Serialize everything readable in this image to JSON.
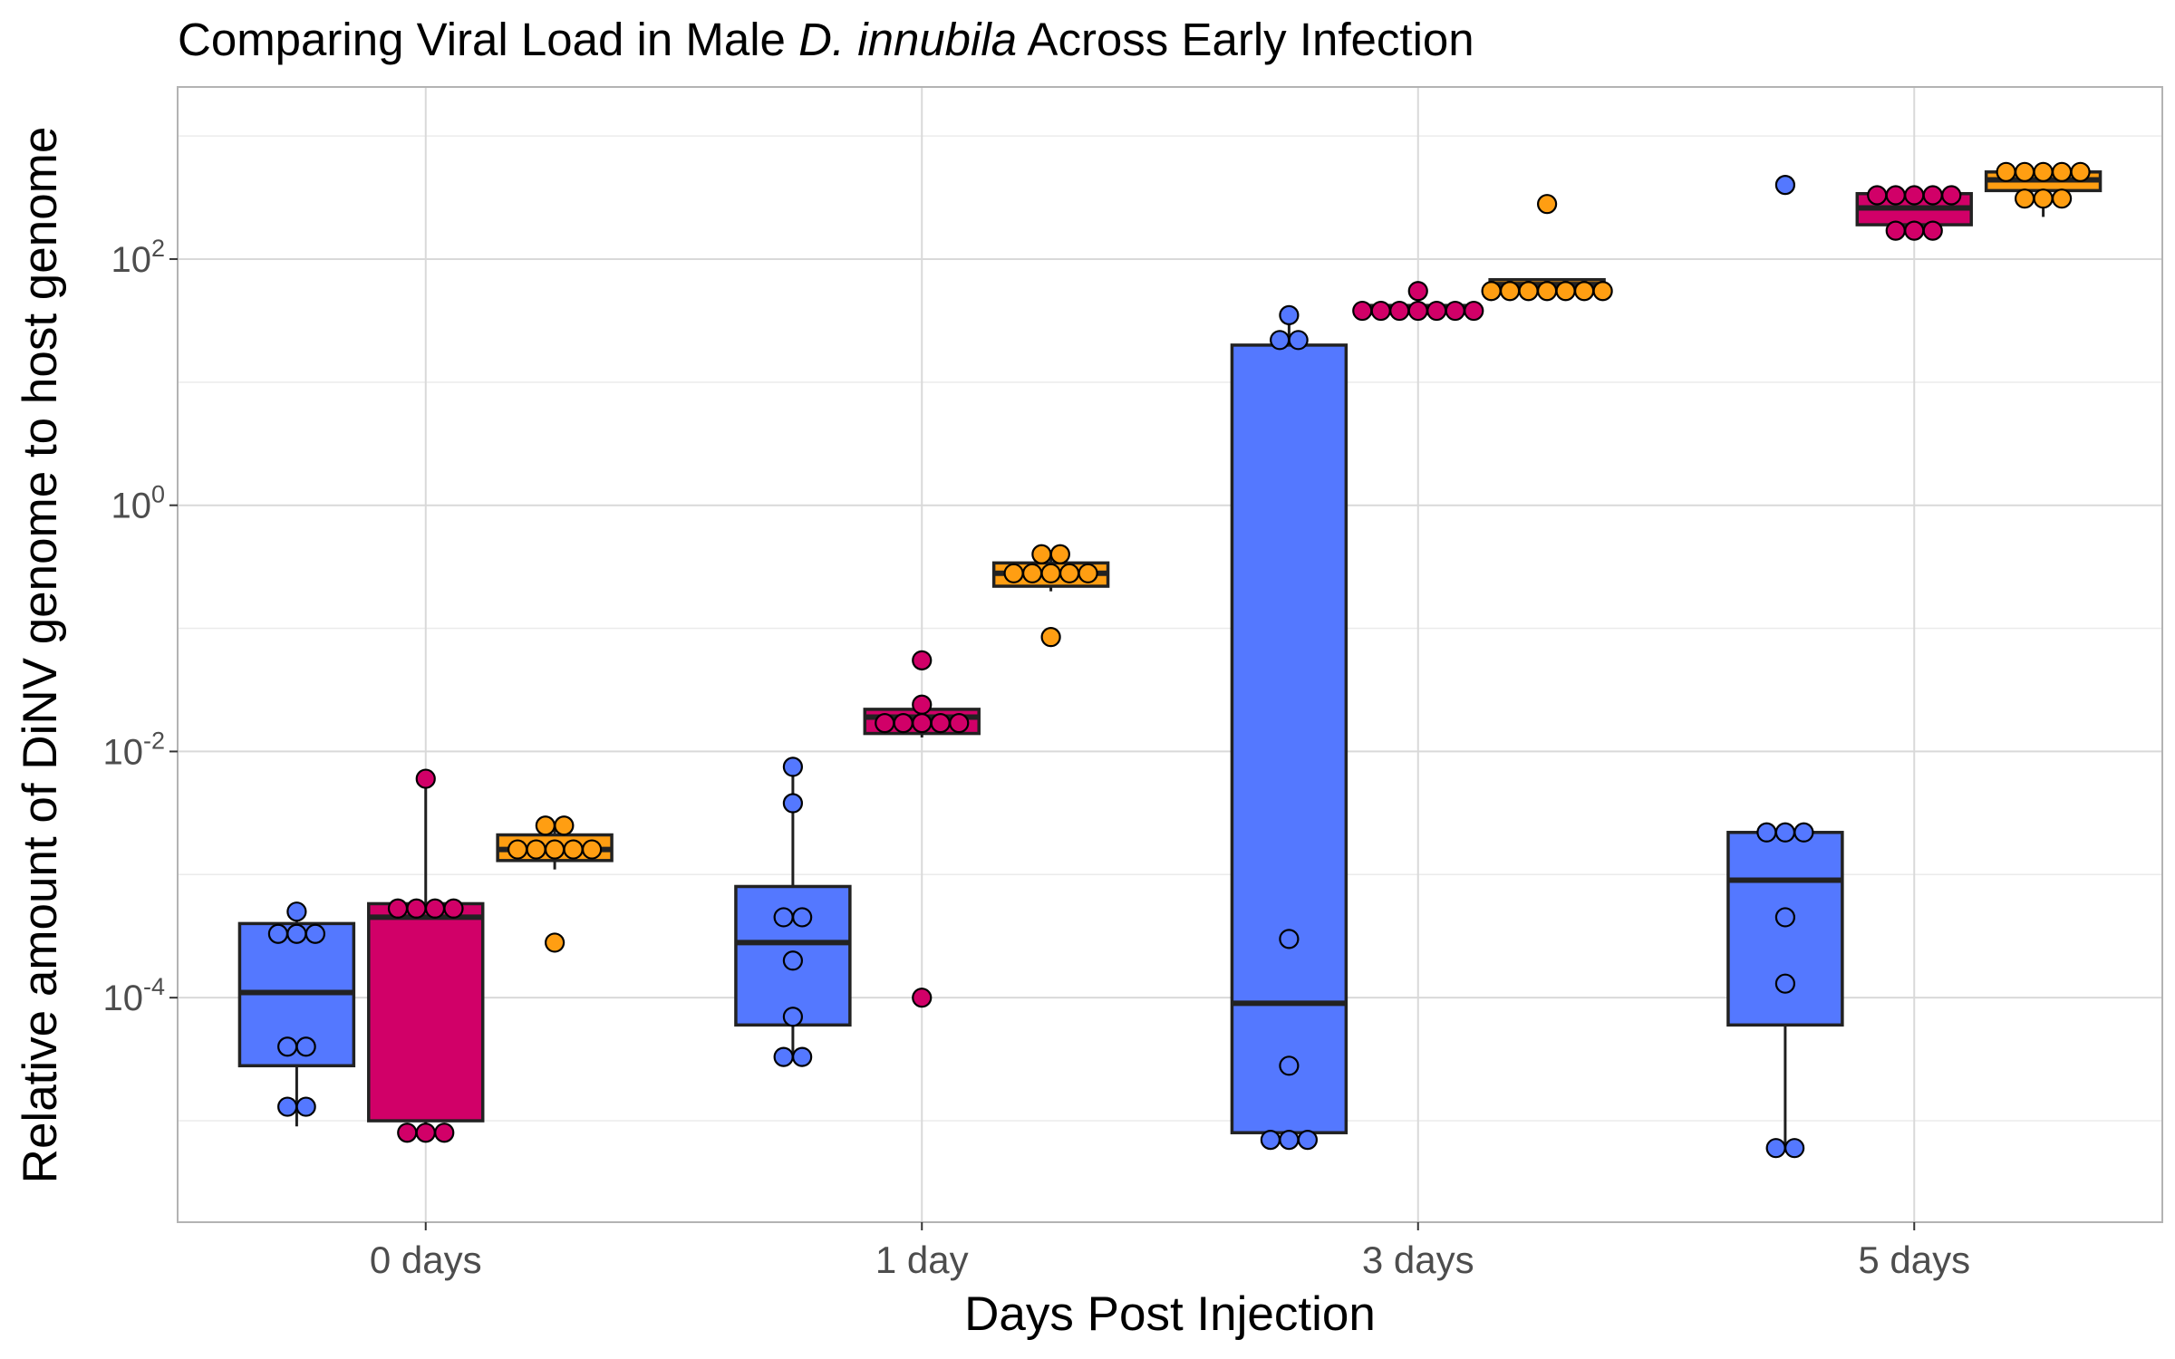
{
  "chart_data": {
    "type": "box",
    "title": {
      "prefix": "Comparing Viral Load in Male ",
      "italic": "D. innubila",
      "suffix": " Across Early Infection"
    },
    "xlabel": "Days Post Injection",
    "ylabel": "Relative amount of DiNV genome to host genome",
    "y_scale": "log10",
    "ylim": [
      1.5e-06,
      2500
    ],
    "y_ticks": [
      {
        "value": 0.0001,
        "base": "10",
        "exp": "-4"
      },
      {
        "value": 0.01,
        "base": "10",
        "exp": "-2"
      },
      {
        "value": 1,
        "base": "10",
        "exp": "0"
      },
      {
        "value": 100,
        "base": "10",
        "exp": "2"
      }
    ],
    "grid": true,
    "legend": "none",
    "categories": [
      "0 days",
      "1 day",
      "3 days",
      "5 days"
    ],
    "series": [
      {
        "color": "#5478ff",
        "boxes": [
          {
            "category": "0 days",
            "q1": 2.8e-05,
            "median": 0.00011,
            "q3": 0.0004,
            "whisker_low": 9e-06,
            "whisker_high": 0.0005,
            "points": [
              0.0005,
              0.00033,
              0.00033,
              0.00033,
              4e-05,
              4e-05,
              1.3e-05,
              1.3e-05
            ]
          },
          {
            "category": "1 day",
            "q1": 6e-05,
            "median": 0.00028,
            "q3": 0.0008,
            "whisker_low": 3.3e-05,
            "whisker_high": 0.0075,
            "points": [
              0.0075,
              0.0038,
              0.00045,
              0.00045,
              0.0002,
              7e-05,
              3.3e-05,
              3.3e-05
            ]
          },
          {
            "category": "3 days",
            "q1": 8e-06,
            "median": 9e-05,
            "q3": 20,
            "whisker_low": 7e-06,
            "whisker_high": 35,
            "points": [
              35,
              22,
              22,
              0.0003,
              2.8e-05,
              7e-06,
              7e-06,
              7e-06
            ]
          },
          {
            "category": "5 days",
            "q1": 6e-05,
            "median": 0.0009,
            "q3": 0.0022,
            "whisker_low": 6e-06,
            "whisker_high": 0.0025,
            "points": [
              400,
              0.0022,
              0.0022,
              0.0022,
              0.00045,
              0.00013,
              6e-06,
              6e-06
            ]
          }
        ]
      },
      {
        "color": "#d10068",
        "boxes": [
          {
            "category": "0 days",
            "q1": 1e-05,
            "median": 0.00045,
            "q3": 0.00058,
            "whisker_low": 8e-06,
            "whisker_high": 0.006,
            "points": [
              0.006,
              0.00053,
              0.00053,
              0.00053,
              0.00053,
              8e-06,
              8e-06,
              8e-06
            ]
          },
          {
            "category": "1 day",
            "q1": 0.014,
            "median": 0.019,
            "q3": 0.022,
            "whisker_low": 0.013,
            "whisker_high": 0.024,
            "points": [
              0.055,
              0.024,
              0.017,
              0.017,
              0.017,
              0.017,
              0.017,
              0.0001
            ]
          },
          {
            "category": "3 days",
            "q1": 38,
            "median": 40,
            "q3": 42,
            "whisker_low": 38,
            "whisker_high": 55,
            "points": [
              55,
              38,
              38,
              38,
              38,
              38,
              38,
              38
            ]
          },
          {
            "category": "5 days",
            "q1": 190,
            "median": 260,
            "q3": 340,
            "whisker_low": 170,
            "whisker_high": 340,
            "points": [
              330,
              330,
              330,
              330,
              330,
              170,
              170,
              170
            ]
          }
        ]
      },
      {
        "color": "#ff9e12",
        "boxes": [
          {
            "category": "0 days",
            "q1": 0.0013,
            "median": 0.0016,
            "q3": 0.0021,
            "whisker_low": 0.0011,
            "whisker_high": 0.0025,
            "points": [
              0.0025,
              0.0025,
              0.0016,
              0.0016,
              0.0016,
              0.0016,
              0.0016,
              0.00028
            ]
          },
          {
            "category": "1 day",
            "q1": 0.22,
            "median": 0.28,
            "q3": 0.34,
            "whisker_low": 0.2,
            "whisker_high": 0.4,
            "points": [
              0.4,
              0.4,
              0.28,
              0.28,
              0.28,
              0.28,
              0.28,
              0.085
            ]
          },
          {
            "category": "3 days",
            "q1": 58,
            "median": 62,
            "q3": 68,
            "whisker_low": 55,
            "whisker_high": 68,
            "points": [
              280,
              55,
              55,
              55,
              55,
              55,
              55,
              55
            ]
          },
          {
            "category": "5 days",
            "q1": 360,
            "median": 440,
            "q3": 510,
            "whisker_low": 220,
            "whisker_high": 520,
            "points": [
              510,
              510,
              510,
              510,
              510,
              310,
              310,
              310
            ]
          }
        ]
      }
    ]
  }
}
